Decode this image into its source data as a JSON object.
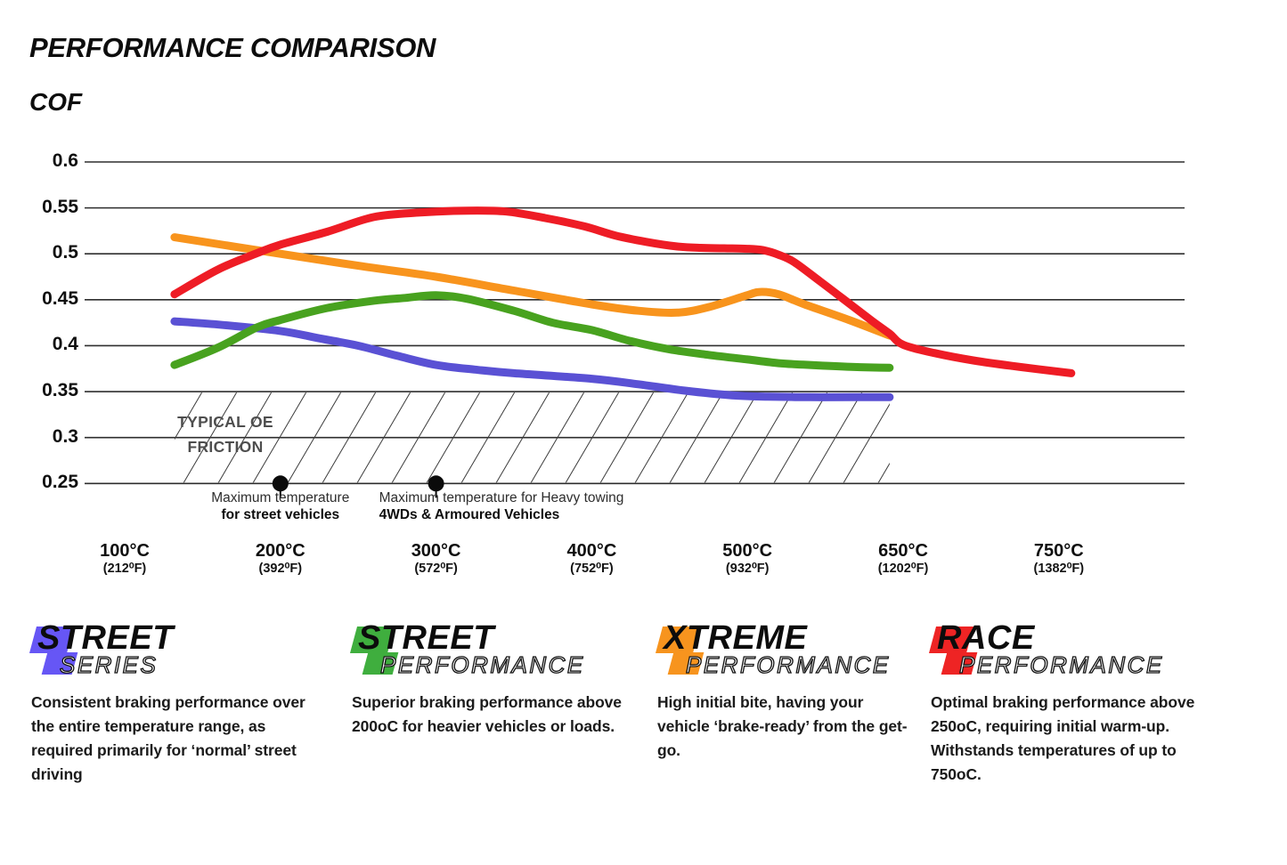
{
  "title": "PERFORMANCE COMPARISON",
  "y_axis_title": "COF",
  "chart_data": {
    "type": "line",
    "title": "PERFORMANCE COMPARISON",
    "ylabel": "COF",
    "ylim": [
      0.25,
      0.6
    ],
    "grid": true,
    "y_ticks": [
      "0.6",
      "0.55",
      "0.5",
      "0.45",
      "0.4",
      "0.35",
      "0.3",
      "0.25"
    ],
    "x_ticks": [
      {
        "t": 100,
        "c": "100°C",
        "f": "(212⁰F)"
      },
      {
        "t": 200,
        "c": "200°C",
        "f": "(392⁰F)"
      },
      {
        "t": 300,
        "c": "300°C",
        "f": "(572⁰F)"
      },
      {
        "t": 400,
        "c": "400°C",
        "f": "(752⁰F)"
      },
      {
        "t": 500,
        "c": "500°C",
        "f": "(932⁰F)"
      },
      {
        "t": 650,
        "c": "650°C",
        "f": "(1202⁰F)"
      },
      {
        "t": 750,
        "c": "750°C",
        "f": "(1382⁰F)"
      }
    ],
    "series": [
      {
        "name": "Street Series",
        "color": "#5a51d4",
        "points": [
          [
            132,
            0.4265
          ],
          [
            160,
            0.423
          ],
          [
            200,
            0.416
          ],
          [
            225,
            0.408
          ],
          [
            250,
            0.4
          ],
          [
            275,
            0.389
          ],
          [
            300,
            0.379
          ],
          [
            325,
            0.374
          ],
          [
            350,
            0.37
          ],
          [
            400,
            0.364
          ],
          [
            430,
            0.358
          ],
          [
            460,
            0.351
          ],
          [
            490,
            0.346
          ],
          [
            520,
            0.3445
          ],
          [
            560,
            0.344
          ],
          [
            600,
            0.344
          ],
          [
            637,
            0.344
          ]
        ]
      },
      {
        "name": "Street Performance",
        "color": "#48a21f",
        "points": [
          [
            132,
            0.379
          ],
          [
            160,
            0.398
          ],
          [
            185,
            0.42
          ],
          [
            200,
            0.428
          ],
          [
            230,
            0.441
          ],
          [
            260,
            0.449
          ],
          [
            280,
            0.452
          ],
          [
            300,
            0.455
          ],
          [
            320,
            0.451
          ],
          [
            350,
            0.438
          ],
          [
            375,
            0.425
          ],
          [
            400,
            0.417
          ],
          [
            425,
            0.405
          ],
          [
            450,
            0.396
          ],
          [
            475,
            0.39
          ],
          [
            500,
            0.385
          ],
          [
            530,
            0.381
          ],
          [
            560,
            0.379
          ],
          [
            600,
            0.377
          ],
          [
            637,
            0.376
          ]
        ]
      },
      {
        "name": "Xtreme Performance",
        "color": "#f8941d",
        "points": [
          [
            132,
            0.518
          ],
          [
            200,
            0.5
          ],
          [
            250,
            0.487
          ],
          [
            300,
            0.475
          ],
          [
            350,
            0.46
          ],
          [
            400,
            0.445
          ],
          [
            430,
            0.438
          ],
          [
            455,
            0.436
          ],
          [
            475,
            0.442
          ],
          [
            500,
            0.455
          ],
          [
            512,
            0.4585
          ],
          [
            530,
            0.456
          ],
          [
            555,
            0.445
          ],
          [
            598,
            0.428
          ],
          [
            637,
            0.411
          ]
        ]
      },
      {
        "name": "Race Performance",
        "color": "#ee1c25",
        "points": [
          [
            132,
            0.456
          ],
          [
            160,
            0.483
          ],
          [
            184,
            0.5
          ],
          [
            200,
            0.51
          ],
          [
            230,
            0.524
          ],
          [
            260,
            0.54
          ],
          [
            290,
            0.545
          ],
          [
            320,
            0.547
          ],
          [
            345,
            0.546
          ],
          [
            370,
            0.539
          ],
          [
            395,
            0.53
          ],
          [
            415,
            0.52
          ],
          [
            435,
            0.513
          ],
          [
            455,
            0.508
          ],
          [
            470,
            0.5065
          ],
          [
            485,
            0.506
          ],
          [
            500,
            0.5055
          ],
          [
            515,
            0.504
          ],
          [
            530,
            0.499
          ],
          [
            545,
            0.491
          ],
          [
            570,
            0.47
          ],
          [
            598,
            0.446
          ],
          [
            620,
            0.427
          ],
          [
            637,
            0.413
          ],
          [
            650,
            0.401
          ],
          [
            670,
            0.392
          ],
          [
            695,
            0.384
          ],
          [
            720,
            0.378
          ],
          [
            758,
            0.37
          ]
        ]
      }
    ],
    "oe_zone": {
      "label_line1": "TYPICAL OE",
      "label_line2": "FRICTION",
      "from_temp": 132,
      "to_temp": 637,
      "cof_top": 0.35,
      "cof_bottom": 0.25
    },
    "markers": [
      {
        "temp": 200,
        "cof": 0.25,
        "line1": "Maximum temperature",
        "line2": "for street vehicles"
      },
      {
        "temp": 300,
        "cof": 0.25,
        "line1": "Maximum temperature for Heavy towing",
        "line2": "4WDs & Armoured Vehicles"
      }
    ]
  },
  "legends": [
    {
      "id": "street-series",
      "word1": "STREET",
      "word2": "SERIES",
      "color": "#6656f5",
      "desc": "Consistent braking performance over the entire temperature range, as required primarily for ‘normal’ street driving"
    },
    {
      "id": "street-performance",
      "word1": "STREET",
      "word2": "PERFORMANCE",
      "color": "#3fae3e",
      "desc": "Superior braking performance above 200oC for heavier vehicles or loads."
    },
    {
      "id": "xtreme-performance",
      "word1": "XTREME",
      "word2": "PERFORMANCE",
      "color": "#f7941e",
      "desc": "High initial bite, having your vehicle ‘brake-ready’ from the get-go."
    },
    {
      "id": "race-performance",
      "word1": "RACE",
      "word2": "PERFORMANCE",
      "color": "#ee2424",
      "desc": "Optimal braking performance above 250oC, requiring initial warm-up. Withstands temperatures of up to 750oC."
    }
  ]
}
